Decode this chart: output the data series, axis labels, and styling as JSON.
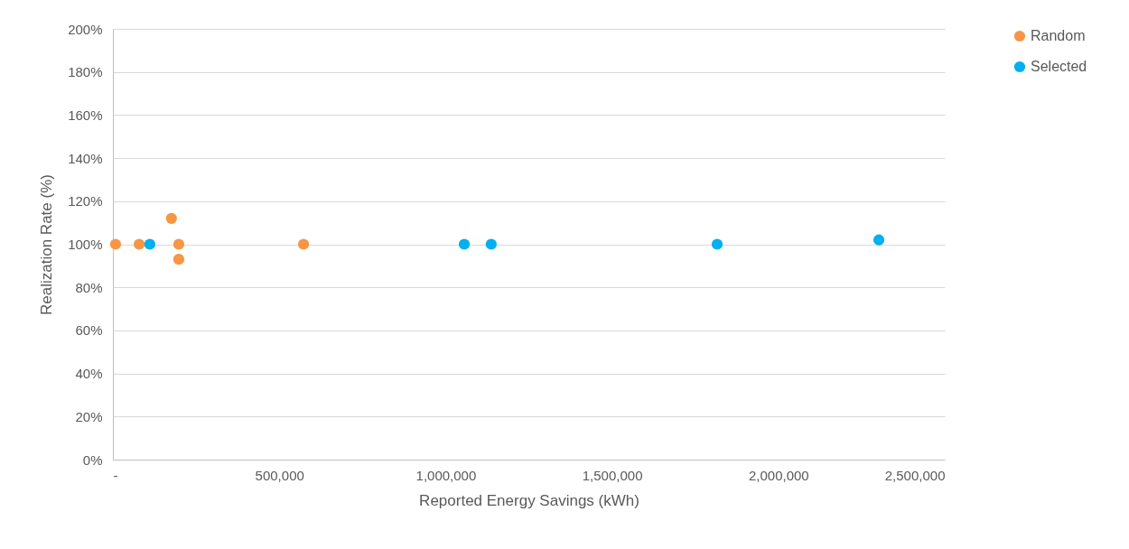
{
  "chart_data": {
    "type": "scatter",
    "xlabel": "Reported Energy Savings (kWh)",
    "ylabel": "Realization Rate (%)",
    "series": [
      {
        "name": "Random",
        "color": "#f79646",
        "x": [
          8000,
          79000,
          176000,
          198000,
          198000,
          573000
        ],
        "values": [
          100,
          100,
          112,
          100,
          93,
          100
        ]
      },
      {
        "name": "Selected",
        "color": "#00b0f0",
        "x": [
          111000,
          1056000,
          1137000,
          1816000,
          2302000
        ],
        "values": [
          100,
          100,
          100,
          100,
          102
        ]
      }
    ],
    "xlim": [
      0,
      2500000
    ],
    "xticks": [
      {
        "value": 0,
        "label": "-"
      },
      {
        "value": 500000,
        "label": "500,000"
      },
      {
        "value": 1000000,
        "label": "1,000,000"
      },
      {
        "value": 1500000,
        "label": "1,500,000"
      },
      {
        "value": 2000000,
        "label": "2,000,000"
      },
      {
        "value": 2500000,
        "label": "2,500,000"
      }
    ],
    "ylim": [
      0,
      200
    ],
    "yticks": [
      {
        "value": 0,
        "label": "0%"
      },
      {
        "value": 20,
        "label": "20%"
      },
      {
        "value": 40,
        "label": "40%"
      },
      {
        "value": 60,
        "label": "60%"
      },
      {
        "value": 80,
        "label": "80%"
      },
      {
        "value": 100,
        "label": "100%"
      },
      {
        "value": 120,
        "label": "120%"
      },
      {
        "value": 140,
        "label": "140%"
      },
      {
        "value": 160,
        "label": "160%"
      },
      {
        "value": 180,
        "label": "180%"
      },
      {
        "value": 200,
        "label": "200%"
      }
    ],
    "grid": "y",
    "legend": "right",
    "marker": "circle"
  }
}
